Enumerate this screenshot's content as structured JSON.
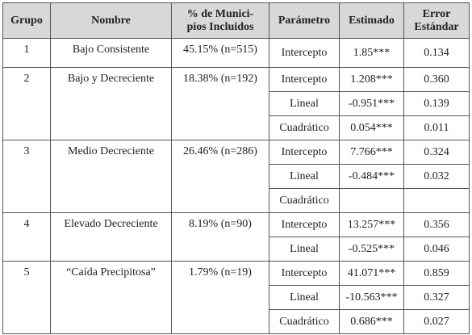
{
  "table": {
    "headers": [
      [
        "Grupo"
      ],
      [
        "Nombre"
      ],
      [
        "% de Munici-",
        "pios Incluidos"
      ],
      [
        "Parámetro"
      ],
      [
        "Estimado"
      ],
      [
        "Error",
        "Estándar"
      ]
    ],
    "groups": [
      {
        "grupo": "1",
        "nombre": "Bajo Consistente",
        "porcentaje": "45.15% (n=515)",
        "params": [
          {
            "parametro": "Intercepto",
            "estimado": "1.85***",
            "error": "0.134"
          }
        ]
      },
      {
        "grupo": "2",
        "nombre": "Bajo y Decreciente",
        "porcentaje": "18.38% (n=192)",
        "params": [
          {
            "parametro": "Intercepto",
            "estimado": "1.208***",
            "error": "0.360"
          },
          {
            "parametro": "Lineal",
            "estimado": "-0.951***",
            "error": "0.139"
          },
          {
            "parametro": "Cuadrático",
            "estimado": "0.054***",
            "error": "0.011"
          }
        ]
      },
      {
        "grupo": "3",
        "nombre": "Medio Decreciente",
        "porcentaje": "26.46% (n=286)",
        "params": [
          {
            "parametro": "Intercepto",
            "estimado": "7.766***",
            "error": "0.324"
          },
          {
            "parametro": "Lineal",
            "estimado": "-0.484***",
            "error": "0.032"
          },
          {
            "parametro": "Cuadrático"
          }
        ]
      },
      {
        "grupo": "4",
        "nombre": "Elevado Decreciente",
        "porcentaje": "8.19% (n=90)",
        "params": [
          {
            "parametro": "Intercepto",
            "estimado": "13.257***",
            "error": "0.356"
          },
          {
            "parametro": "Lineal",
            "estimado": "-0.525***",
            "error": "0.046"
          }
        ]
      },
      {
        "grupo": "5",
        "nombre": "“Caída Precipitosa”",
        "porcentaje": "1.79% (n=19)",
        "params": [
          {
            "parametro": "Intercepto",
            "estimado": "41.071***",
            "error": "0.859"
          },
          {
            "parametro": "Lineal",
            "estimado": "-10.563***",
            "error": "0.327"
          },
          {
            "parametro": "Cuadrático",
            "estimado": "0.686***",
            "error": "0.027"
          }
        ]
      }
    ]
  }
}
